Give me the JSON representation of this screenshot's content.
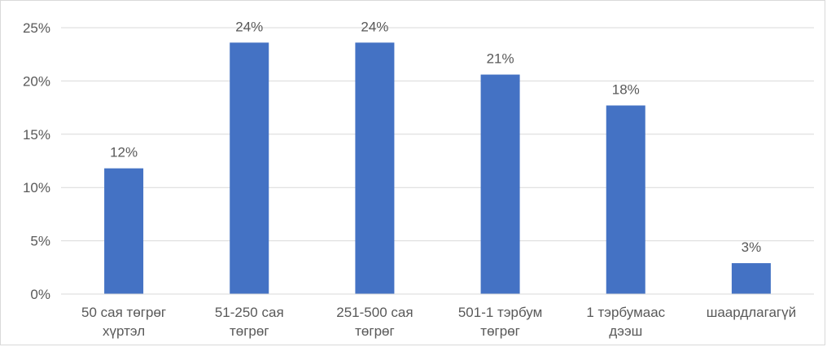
{
  "chart_data": {
    "type": "bar",
    "categories": [
      [
        "50 сая төгрөг",
        "хүртэл"
      ],
      [
        "51-250 сая",
        "төгрөг"
      ],
      [
        "251-500 сая",
        "төгрөг"
      ],
      [
        "501-1 тэрбум",
        "төгрөг"
      ],
      [
        "1 тэрбумаас",
        "дээш"
      ],
      [
        "шаардлагагүй"
      ]
    ],
    "values": [
      11.8,
      23.6,
      23.6,
      20.6,
      17.7,
      2.9
    ],
    "data_labels": [
      "12%",
      "24%",
      "24%",
      "21%",
      "18%",
      "3%"
    ],
    "y_ticks": [
      "0%",
      "5%",
      "10%",
      "15%",
      "20%",
      "25%"
    ],
    "ylim": [
      0,
      25
    ],
    "grid": true,
    "legend": "none",
    "bar_color": "#4472C4",
    "grid_color": "#d9d9d9"
  }
}
